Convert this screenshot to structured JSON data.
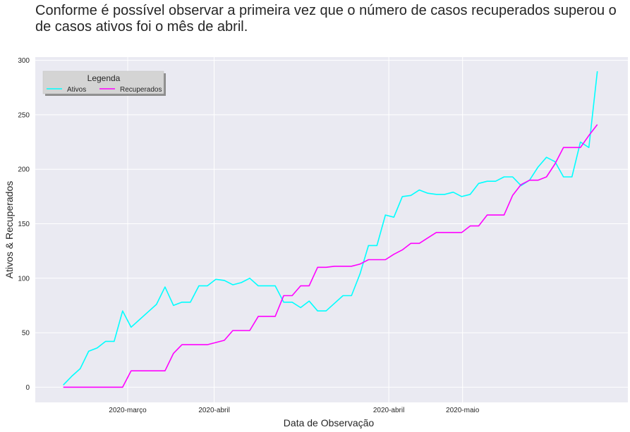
{
  "title": "Conforme é possível observar a primeira vez que o número de casos recuperados superou o de casos ativos foi o mês de abril.",
  "chart_data": {
    "type": "line",
    "xlabel": "Data de Observação",
    "ylabel": "Ativos & Recuperados",
    "ylim": [
      -14,
      303
    ],
    "yticks": [
      0,
      50,
      100,
      150,
      200,
      250,
      300
    ],
    "xlim": [
      -3.3,
      66.6
    ],
    "xticks": [
      {
        "label": "2020-março",
        "x": 7.6
      },
      {
        "label": "2020-abril",
        "x": 17.8
      },
      {
        "label": "2020-abril",
        "x": 38.4
      },
      {
        "label": "2020-maio",
        "x": 47.1
      }
    ],
    "grid": true,
    "legend": {
      "title": "Legenda",
      "placement": "top-left"
    },
    "colors": {
      "Ativos": "#00ffff",
      "Recuperados": "#ff00ff",
      "background": "#eaeaf2",
      "grid": "#ffffff"
    },
    "series": [
      {
        "name": "Ativos",
        "x": [
          0,
          1,
          2,
          3,
          4,
          5,
          6,
          7,
          8,
          9,
          10,
          11,
          12,
          13,
          14,
          15,
          16,
          17,
          18,
          19,
          20,
          21,
          22,
          23,
          24,
          25,
          26,
          27,
          28,
          29,
          30,
          31,
          32,
          33,
          34,
          35,
          36,
          37,
          38,
          39,
          40,
          41,
          42,
          43,
          44,
          45,
          46,
          47,
          48,
          49,
          50,
          51,
          52,
          53,
          54,
          55,
          56,
          57,
          58,
          59,
          60,
          61,
          62,
          63
        ],
        "values": [
          2,
          10,
          17,
          33,
          36,
          42,
          42,
          70,
          55,
          62,
          69,
          76,
          92,
          75,
          78,
          78,
          93,
          93,
          99,
          98,
          94,
          96,
          100,
          93,
          93,
          93,
          78,
          78,
          73,
          79,
          70,
          70,
          77,
          84,
          84,
          104,
          130,
          130,
          158,
          156,
          175,
          176,
          181,
          178,
          177,
          177,
          179,
          175,
          177,
          187,
          189,
          189,
          193,
          193,
          185,
          190,
          202,
          211,
          207,
          193,
          193,
          225,
          220,
          290
        ]
      },
      {
        "name": "Recuperados",
        "x": [
          0,
          1,
          2,
          3,
          4,
          5,
          6,
          7,
          8,
          9,
          10,
          11,
          12,
          13,
          14,
          15,
          16,
          17,
          18,
          19,
          20,
          21,
          22,
          23,
          24,
          25,
          26,
          27,
          28,
          29,
          30,
          31,
          32,
          33,
          34,
          35,
          36,
          37,
          38,
          39,
          40,
          41,
          42,
          43,
          44,
          45,
          46,
          47,
          48,
          49,
          50,
          51,
          52,
          53,
          54,
          55,
          56,
          57,
          58,
          59,
          60,
          61,
          62,
          63
        ],
        "values": [
          0,
          0,
          0,
          0,
          0,
          0,
          0,
          0,
          15,
          15,
          15,
          15,
          15,
          31,
          39,
          39,
          39,
          39,
          41,
          43,
          52,
          52,
          52,
          65,
          65,
          65,
          84,
          84,
          93,
          93,
          110,
          110,
          111,
          111,
          111,
          113,
          117,
          117,
          117,
          122,
          126,
          132,
          132,
          137,
          142,
          142,
          142,
          142,
          148,
          148,
          158,
          158,
          158,
          176,
          186,
          190,
          190,
          193,
          205,
          220,
          220,
          220,
          231,
          241
        ]
      }
    ]
  }
}
